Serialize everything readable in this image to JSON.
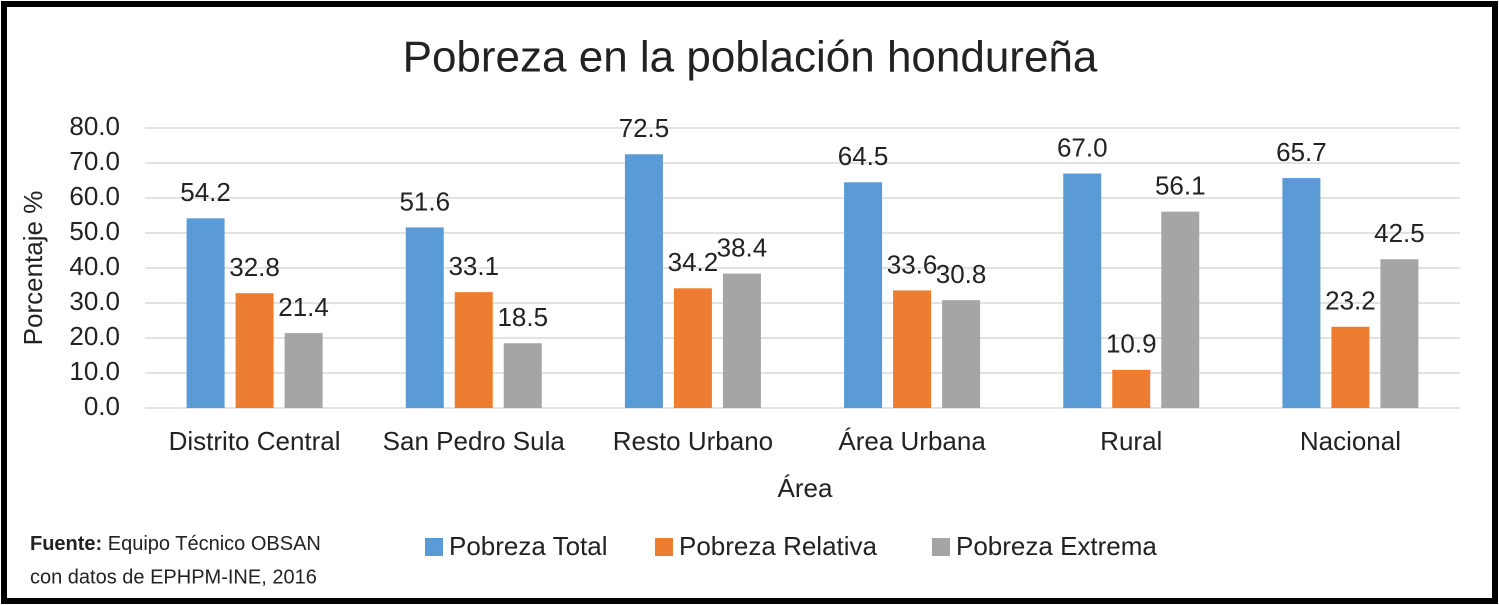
{
  "chart_data": {
    "type": "bar",
    "title": "Pobreza en la población hondureña",
    "xlabel": "Área",
    "ylabel": "Porcentaje %",
    "categories": [
      "Distrito Central",
      "San Pedro Sula",
      "Resto Urbano",
      "Área Urbana",
      "Rural",
      "Nacional"
    ],
    "series": [
      {
        "name": "Pobreza Total",
        "color": "#5b9bd5",
        "values": [
          54.2,
          51.6,
          72.5,
          64.5,
          67.0,
          65.7
        ],
        "value_labels": [
          "54.2",
          "51.6",
          "72.5",
          "64.5",
          "67.0",
          "65.7"
        ]
      },
      {
        "name": "Pobreza Relativa",
        "color": "#ed7d31",
        "values": [
          32.8,
          33.1,
          34.2,
          33.6,
          10.9,
          23.2
        ],
        "value_labels": [
          "32.8",
          "33.1",
          "34.2",
          "33.6",
          "10.9",
          "23.2"
        ]
      },
      {
        "name": "Pobreza Extrema",
        "color": "#a5a5a5",
        "values": [
          21.4,
          18.5,
          38.4,
          30.8,
          56.1,
          42.5
        ],
        "value_labels": [
          "21.4",
          "18.5",
          "38.4",
          "30.8",
          "56.1",
          "42.5"
        ]
      }
    ],
    "ylim": [
      0,
      80
    ],
    "yticks": [
      {
        "value": 0,
        "label": "0.0"
      },
      {
        "value": 10,
        "label": "10.0"
      },
      {
        "value": 20,
        "label": "20.0"
      },
      {
        "value": 30,
        "label": "30.0"
      },
      {
        "value": 40,
        "label": "40.0"
      },
      {
        "value": 50,
        "label": "50.0"
      },
      {
        "value": 60,
        "label": "60.0"
      },
      {
        "value": 70,
        "label": "70.0"
      },
      {
        "value": 80,
        "label": "80.0"
      }
    ],
    "grid": true,
    "legend": "bottom",
    "source": {
      "label": "Fuente:",
      "lines": [
        "Equipo Técnico OBSAN",
        "con datos de EPHPM-INE, 2016"
      ]
    }
  }
}
